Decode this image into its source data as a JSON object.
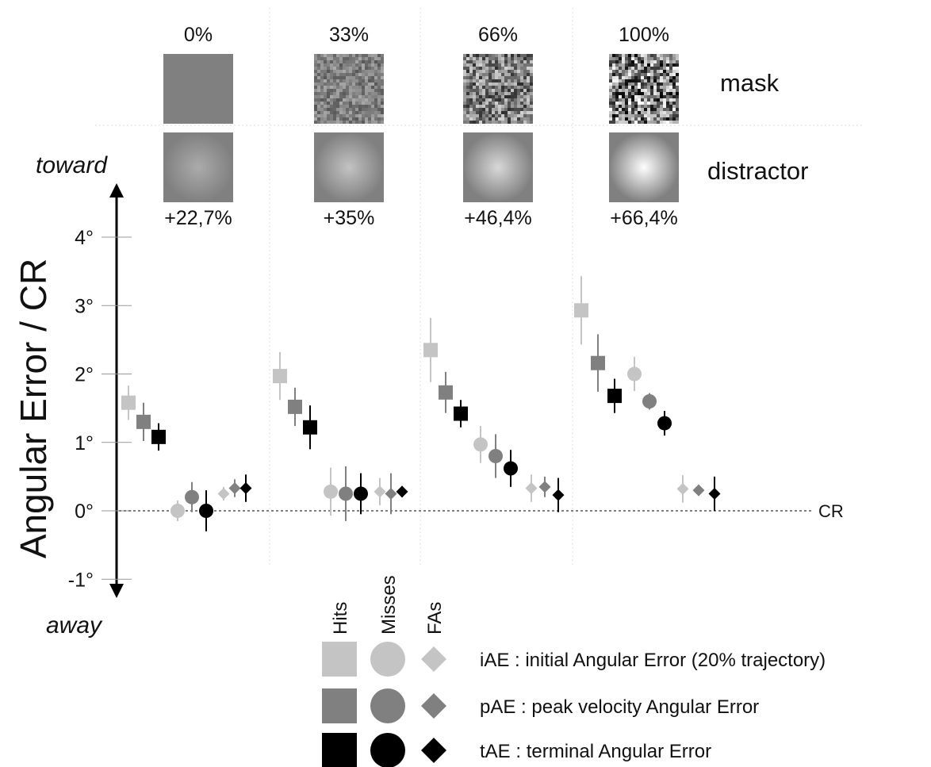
{
  "chart_data": {
    "type": "scatter",
    "ylabel": "Angular Error / CR",
    "y_top_label": "toward",
    "y_bottom_label": "away",
    "reference_label": "CR",
    "ylim": [
      -1,
      4
    ],
    "y_ticks": [
      "4°",
      "3°",
      "2°",
      "1°",
      "0°",
      "-1°"
    ],
    "y_tick_values": [
      4,
      3,
      2,
      1,
      0,
      -1
    ],
    "row_labels": {
      "mask": "mask",
      "distractor": "distractor"
    },
    "conditions": [
      {
        "mask": "0%",
        "distractor": "+22,7%",
        "mask_noise": 0.0,
        "distractor_intensity": 0.227,
        "points": [
          {
            "outcome": "Hits",
            "measure": "iAE",
            "value": 1.58,
            "err": 0.25
          },
          {
            "outcome": "Hits",
            "measure": "pAE",
            "value": 1.3,
            "err": 0.28
          },
          {
            "outcome": "Hits",
            "measure": "tAE",
            "value": 1.08,
            "err": 0.2
          },
          {
            "outcome": "Misses",
            "measure": "iAE",
            "value": 0.0,
            "err": 0.15
          },
          {
            "outcome": "Misses",
            "measure": "pAE",
            "value": 0.2,
            "err": 0.22
          },
          {
            "outcome": "Misses",
            "measure": "tAE",
            "value": 0.0,
            "err": 0.3
          },
          {
            "outcome": "FAs",
            "measure": "iAE",
            "value": 0.25,
            "err": 0.1
          },
          {
            "outcome": "FAs",
            "measure": "pAE",
            "value": 0.33,
            "err": 0.13
          },
          {
            "outcome": "FAs",
            "measure": "tAE",
            "value": 0.33,
            "err": 0.2
          }
        ]
      },
      {
        "mask": "33%",
        "distractor": "+35%",
        "mask_noise": 0.33,
        "distractor_intensity": 0.35,
        "points": [
          {
            "outcome": "Hits",
            "measure": "iAE",
            "value": 1.97,
            "err": 0.35
          },
          {
            "outcome": "Hits",
            "measure": "pAE",
            "value": 1.52,
            "err": 0.28
          },
          {
            "outcome": "Hits",
            "measure": "tAE",
            "value": 1.22,
            "err": 0.32
          },
          {
            "outcome": "Misses",
            "measure": "iAE",
            "value": 0.28,
            "err": 0.35
          },
          {
            "outcome": "Misses",
            "measure": "pAE",
            "value": 0.25,
            "err": 0.4
          },
          {
            "outcome": "Misses",
            "measure": "tAE",
            "value": 0.25,
            "err": 0.3
          },
          {
            "outcome": "FAs",
            "measure": "iAE",
            "value": 0.28,
            "err": 0.2
          },
          {
            "outcome": "FAs",
            "measure": "pAE",
            "value": 0.25,
            "err": 0.3
          },
          {
            "outcome": "FAs",
            "measure": "tAE",
            "value": 0.28,
            "err": 0.08
          }
        ]
      },
      {
        "mask": "66%",
        "distractor": "+46,4%",
        "mask_noise": 0.66,
        "distractor_intensity": 0.464,
        "points": [
          {
            "outcome": "Hits",
            "measure": "iAE",
            "value": 2.35,
            "err": 0.47
          },
          {
            "outcome": "Hits",
            "measure": "pAE",
            "value": 1.73,
            "err": 0.3
          },
          {
            "outcome": "Hits",
            "measure": "tAE",
            "value": 1.42,
            "err": 0.2
          },
          {
            "outcome": "Misses",
            "measure": "iAE",
            "value": 0.97,
            "err": 0.27
          },
          {
            "outcome": "Misses",
            "measure": "pAE",
            "value": 0.8,
            "err": 0.32
          },
          {
            "outcome": "Misses",
            "measure": "tAE",
            "value": 0.62,
            "err": 0.27
          },
          {
            "outcome": "FAs",
            "measure": "iAE",
            "value": 0.33,
            "err": 0.2
          },
          {
            "outcome": "FAs",
            "measure": "pAE",
            "value": 0.35,
            "err": 0.15
          },
          {
            "outcome": "FAs",
            "measure": "tAE",
            "value": 0.23,
            "err": 0.25
          }
        ]
      },
      {
        "mask": "100%",
        "distractor": "+66,4%",
        "mask_noise": 1.0,
        "distractor_intensity": 0.664,
        "points": [
          {
            "outcome": "Hits",
            "measure": "iAE",
            "value": 2.93,
            "err": 0.5
          },
          {
            "outcome": "Hits",
            "measure": "pAE",
            "value": 2.16,
            "err": 0.42
          },
          {
            "outcome": "Hits",
            "measure": "tAE",
            "value": 1.68,
            "err": 0.25
          },
          {
            "outcome": "Misses",
            "measure": "iAE",
            "value": 2.0,
            "err": 0.25
          },
          {
            "outcome": "Misses",
            "measure": "pAE",
            "value": 1.6,
            "err": 0.12
          },
          {
            "outcome": "Misses",
            "measure": "tAE",
            "value": 1.28,
            "err": 0.18
          },
          {
            "outcome": "FAs",
            "measure": "iAE",
            "value": 0.32,
            "err": 0.2
          },
          {
            "outcome": "FAs",
            "measure": "pAE",
            "value": 0.3,
            "err": 0.08
          },
          {
            "outcome": "FAs",
            "measure": "tAE",
            "value": 0.25,
            "err": 0.25
          }
        ]
      }
    ],
    "legend": {
      "outcomes": [
        "Hits",
        "Misses",
        "FAs"
      ],
      "outcome_shapes": {
        "Hits": "square",
        "Misses": "circle",
        "FAs": "diamond"
      },
      "measures": [
        {
          "key": "iAE",
          "label": "iAE : initial Angular Error (20% trajectory)",
          "color": "#c4c4c4"
        },
        {
          "key": "pAE",
          "label": "pAE : peak velocity Angular Error",
          "color": "#808080"
        },
        {
          "key": "tAE",
          "label": "tAE : terminal Angular Error",
          "color": "#000000"
        }
      ]
    }
  }
}
